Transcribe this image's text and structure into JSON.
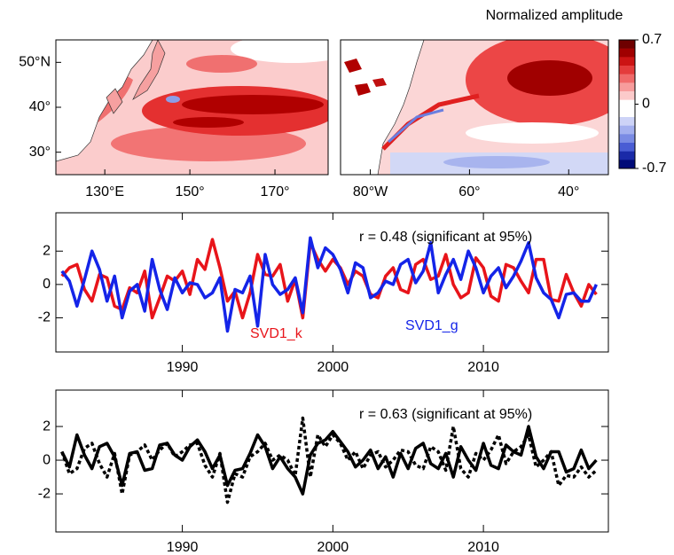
{
  "chart_data": [
    {
      "type": "map",
      "xlim": [
        118.5,
        182.5
      ],
      "ylim": [
        25,
        55
      ],
      "xticks": [
        {
          "value": 130,
          "label": "130°E"
        },
        {
          "value": 150,
          "label": "150°"
        },
        {
          "value": 170,
          "label": "170°"
        }
      ],
      "yticks": [
        {
          "value": 30,
          "label": "30°"
        },
        {
          "value": 40,
          "label": "40°"
        },
        {
          "value": 50,
          "label": "50°N"
        }
      ]
    },
    {
      "type": "map",
      "xlim": [
        -86,
        -32
      ],
      "ylim": [
        25,
        55
      ],
      "xticks": [
        {
          "value": -80,
          "label": "80°W"
        },
        {
          "value": -60,
          "label": "60°"
        },
        {
          "value": -40,
          "label": "40°"
        }
      ]
    },
    {
      "type": "colorbar",
      "title": "Normalized amplitude",
      "clim": [
        -0.7,
        0.7
      ],
      "ticks": [
        -0.7,
        0,
        0.7
      ],
      "colors": [
        "#6e0000",
        "#a00000",
        "#cc1414",
        "#e43c3c",
        "#f06a6a",
        "#f79c9c",
        "#fccaca",
        "#ffffff",
        "#ffffff",
        "#cdd3f7",
        "#a4b0ef",
        "#7a8be4",
        "#4a5dd4",
        "#1a2aa8",
        "#000a78"
      ]
    },
    {
      "type": "line",
      "annotation": "r = 0.48 (significant at 95%)",
      "x": [
        1982,
        1982.5,
        1983,
        1983.5,
        1984,
        1984.5,
        1985,
        1985.5,
        1986,
        1986.5,
        1987,
        1987.5,
        1988,
        1988.5,
        1989,
        1989.5,
        1990,
        1990.5,
        1991,
        1991.5,
        1992,
        1992.5,
        1993,
        1993.5,
        1994,
        1994.5,
        1995,
        1995.5,
        1996,
        1996.5,
        1997,
        1997.5,
        1998,
        1998.5,
        1999,
        1999.5,
        2000,
        2000.5,
        2001,
        2001.5,
        2002,
        2002.5,
        2003,
        2003.5,
        2004,
        2004.5,
        2005,
        2005.5,
        2006,
        2006.5,
        2007,
        2007.5,
        2008,
        2008.5,
        2009,
        2009.5,
        2010,
        2010.5,
        2011,
        2011.5,
        2012,
        2012.5,
        2013,
        2013.5,
        2014,
        2014.5,
        2015,
        2015.5,
        2016,
        2016.5,
        2017,
        2017.5
      ],
      "xlim": [
        1981.6,
        2018.3
      ],
      "ylim": [
        -4.05,
        4.3
      ],
      "xticks": [
        1990,
        2000,
        2010
      ],
      "yticks": [
        -2,
        0,
        2
      ],
      "series": [
        {
          "name": "SVD1_k",
          "color": "#e8141a",
          "values": [
            0.5,
            1.0,
            1.2,
            -0.3,
            -1.0,
            0.6,
            0.4,
            -1.3,
            -1.5,
            -0.2,
            -0.5,
            0.8,
            -2.0,
            -0.8,
            0.5,
            0.2,
            0.8,
            -0.6,
            1.5,
            0.9,
            2.7,
            1.0,
            -1.0,
            -0.4,
            -2.0,
            -0.5,
            1.8,
            0.6,
            0.5,
            1.2,
            -1.0,
            0.3,
            -2.0,
            2.5,
            1.5,
            0.8,
            1.5,
            1.0,
            0.0,
            0.8,
            0.5,
            -0.6,
            -0.8,
            0.5,
            1.0,
            -0.3,
            -0.5,
            1.2,
            1.5,
            0.3,
            0.5,
            1.8,
            0.0,
            -0.8,
            -0.5,
            1.6,
            1.0,
            -0.7,
            -1.0,
            1.2,
            1.0,
            0.2,
            -0.5,
            1.5,
            1.5,
            -0.9,
            -1.0,
            0.6,
            -0.5,
            -1.3,
            0.0,
            -0.6
          ]
        },
        {
          "name": "SVD1_g",
          "color": "#1424e8",
          "values": [
            0.8,
            0.2,
            -1.3,
            0.3,
            2.0,
            0.9,
            -1.0,
            0.5,
            -2.0,
            -0.4,
            0.0,
            -1.6,
            1.5,
            -0.3,
            -1.5,
            0.4,
            -0.5,
            0.1,
            0.0,
            -0.8,
            -0.5,
            0.4,
            -2.8,
            -0.3,
            -0.5,
            0.5,
            -2.5,
            1.8,
            0.0,
            -0.6,
            -0.3,
            0.4,
            -1.7,
            2.8,
            1.0,
            2.2,
            1.8,
            0.9,
            -0.5,
            1.3,
            1.0,
            -0.8,
            -0.5,
            0.2,
            0.0,
            1.2,
            1.5,
            0.1,
            0.8,
            2.5,
            -0.5,
            0.6,
            1.5,
            0.3,
            2.0,
            1.0,
            -0.5,
            0.5,
            1.0,
            -0.2,
            0.5,
            1.4,
            2.5,
            0.4,
            -0.5,
            -0.9,
            -2.0,
            -0.6,
            -0.5,
            -1.0,
            -1.0,
            0.0
          ]
        }
      ]
    },
    {
      "type": "line",
      "annotation": "r = 0.63 (significant at 95%)",
      "x": [
        1982,
        1982.5,
        1983,
        1983.5,
        1984,
        1984.5,
        1985,
        1985.5,
        1986,
        1986.5,
        1987,
        1987.5,
        1988,
        1988.5,
        1989,
        1989.5,
        1990,
        1990.5,
        1991,
        1991.5,
        1992,
        1992.5,
        1993,
        1993.5,
        1994,
        1994.5,
        1995,
        1995.5,
        1996,
        1996.5,
        1997,
        1997.5,
        1998,
        1998.5,
        1999,
        1999.5,
        2000,
        2000.5,
        2001,
        2001.5,
        2002,
        2002.5,
        2003,
        2003.5,
        2004,
        2004.5,
        2005,
        2005.5,
        2006,
        2006.5,
        2007,
        2007.5,
        2008,
        2008.5,
        2009,
        2009.5,
        2010,
        2010.5,
        2011,
        2011.5,
        2012,
        2012.5,
        2013,
        2013.5,
        2014,
        2014.5,
        2015,
        2015.5,
        2016,
        2016.5,
        2017,
        2017.5
      ],
      "xlim": [
        1981.6,
        2018.3
      ],
      "ylim": [
        -4.26,
        4.16
      ],
      "xticks": [
        1990,
        2000,
        2010
      ],
      "yticks": [
        -2,
        0,
        2
      ],
      "series": [
        {
          "color": "#000000",
          "dash": "solid",
          "values": [
            0.5,
            -0.4,
            1.5,
            0.3,
            -0.5,
            0.8,
            1.0,
            0.2,
            -1.5,
            0.4,
            0.5,
            -0.6,
            -0.5,
            0.9,
            1.0,
            0.3,
            0.0,
            0.8,
            1.2,
            0.5,
            -0.5,
            0.3,
            -1.5,
            -0.6,
            -0.5,
            0.4,
            1.5,
            0.8,
            -0.5,
            0.2,
            -0.5,
            -1.0,
            -2.0,
            0.3,
            1.0,
            1.2,
            1.7,
            1.1,
            0.5,
            -0.4,
            0.0,
            0.6,
            -0.5,
            0.2,
            -1.0,
            0.4,
            -0.5,
            0.7,
            1.0,
            -0.2,
            -0.5,
            0.4,
            -1.0,
            0.8,
            0.0,
            -0.6,
            1.0,
            -0.3,
            -0.5,
            0.9,
            0.5,
            0.3,
            2.0,
            0.2,
            -0.5,
            0.5,
            0.5,
            -0.7,
            -0.5,
            0.6,
            -0.5,
            0.0
          ]
        },
        {
          "color": "#000000",
          "dash": "dotted",
          "values": [
            0.5,
            -0.8,
            -0.5,
            0.7,
            1.0,
            -0.2,
            -1.0,
            0.4,
            -2.0,
            0.3,
            0.5,
            0.9,
            0.0,
            0.6,
            1.0,
            0.2,
            0.5,
            0.9,
            1.0,
            -0.3,
            -1.0,
            0.4,
            -2.5,
            -0.8,
            -1.0,
            0.2,
            0.5,
            1.0,
            0.0,
            0.3,
            0.0,
            -0.9,
            2.5,
            -1.0,
            1.5,
            0.8,
            1.5,
            1.0,
            0.0,
            0.5,
            -0.5,
            0.3,
            0.5,
            -0.4,
            0.0,
            0.6,
            0.5,
            -0.3,
            -0.5,
            0.8,
            0.5,
            -0.6,
            2.0,
            -0.5,
            -1.0,
            0.4,
            0.0,
            0.6,
            1.5,
            -0.2,
            0.5,
            0.8,
            1.5,
            -0.4,
            0.0,
            0.5,
            -1.5,
            -0.9,
            -1.0,
            -0.4,
            -1.0,
            -0.6
          ]
        }
      ]
    }
  ]
}
